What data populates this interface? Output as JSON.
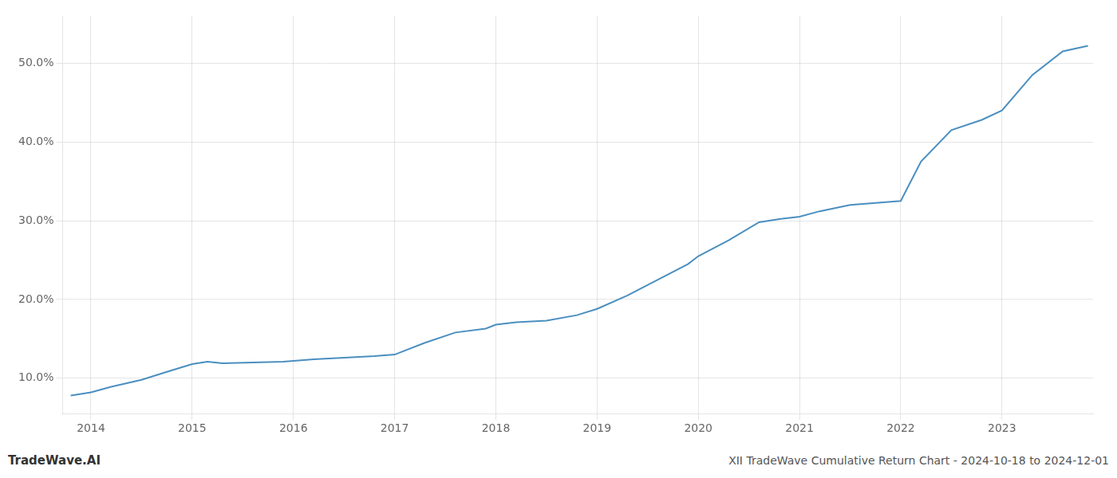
{
  "chart_data": {
    "type": "line",
    "title": "XII TradeWave Cumulative Return Chart - 2024-10-18 to 2024-12-01",
    "annotations": [
      "TradeWave.AI"
    ],
    "color": "#4a8fc0",
    "x": [
      2013.8,
      2014.0,
      2014.2,
      2014.5,
      2014.75,
      2015.0,
      2015.15,
      2015.3,
      2015.6,
      2015.9,
      2016.0,
      2016.2,
      2016.5,
      2016.8,
      2017.0,
      2017.3,
      2017.6,
      2017.9,
      2018.0,
      2018.2,
      2018.5,
      2018.8,
      2019.0,
      2019.3,
      2019.6,
      2019.9,
      2020.0,
      2020.3,
      2020.6,
      2020.8,
      2021.0,
      2021.2,
      2021.5,
      2021.8,
      2022.0,
      2022.2,
      2022.5,
      2022.8,
      2023.0,
      2023.3,
      2023.6,
      2023.85
    ],
    "values": [
      7.8,
      8.2,
      8.9,
      9.8,
      10.8,
      11.8,
      12.1,
      11.9,
      12.0,
      12.1,
      12.2,
      12.4,
      12.6,
      12.8,
      13.0,
      14.5,
      15.8,
      16.3,
      16.8,
      17.1,
      17.3,
      18.0,
      18.8,
      20.5,
      22.5,
      24.5,
      25.5,
      27.5,
      29.8,
      30.2,
      30.5,
      31.2,
      32.0,
      32.3,
      32.5,
      37.5,
      41.5,
      42.8,
      44.0,
      48.5,
      51.5,
      52.2
    ],
    "xlim": [
      2013.72,
      2023.9
    ],
    "ylim": [
      5.5,
      56
    ],
    "xticks": [
      2014,
      2015,
      2016,
      2017,
      2018,
      2019,
      2020,
      2021,
      2022,
      2023
    ],
    "yticks": [
      {
        "value": 10.0,
        "label": "10.0%"
      },
      {
        "value": 20.0,
        "label": "20.0%"
      },
      {
        "value": 30.0,
        "label": "30.0%"
      },
      {
        "value": 40.0,
        "label": "40.0%"
      },
      {
        "value": 50.0,
        "label": "50.0%"
      }
    ],
    "grid": true
  }
}
